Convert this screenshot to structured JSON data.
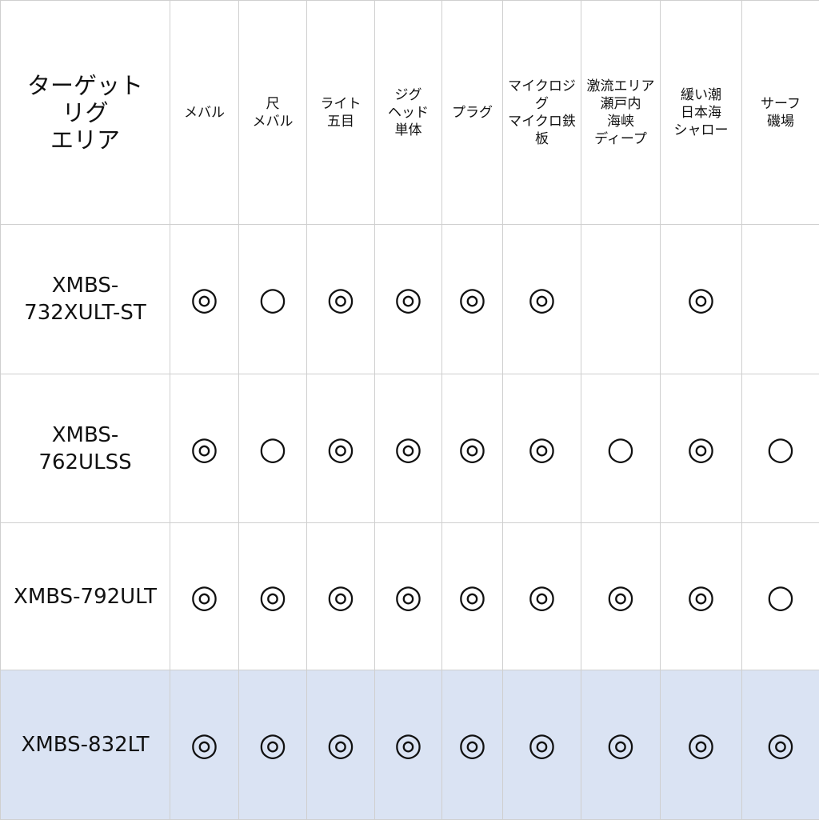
{
  "table": {
    "corner_header": "ターゲット\nリグ\nエリア",
    "columns": [
      "メバル",
      "尺\nメバル",
      "ライト\n五目",
      "ジグ\nヘッド\n単体",
      "プラグ",
      "マイクロジ\nグ\nマイクロ鉄\n板",
      "激流エリア\n瀬戸内\n海峡\nディープ",
      "緩い潮\n日本海\nシャロー",
      "サーフ\n磯場"
    ],
    "rows": [
      {
        "model": "XMBS-\n732XULT-ST",
        "marks": [
          "◎",
          "○",
          "◎",
          "◎",
          "◎",
          "◎",
          "",
          "◎",
          ""
        ]
      },
      {
        "model": "XMBS-\n762ULSS",
        "marks": [
          "◎",
          "○",
          "◎",
          "◎",
          "◎",
          "◎",
          "○",
          "◎",
          "○"
        ]
      },
      {
        "model": "XMBS-792ULT",
        "marks": [
          "◎",
          "◎",
          "◎",
          "◎",
          "◎",
          "◎",
          "◎",
          "◎",
          "○"
        ]
      },
      {
        "model": "XMBS-832LT",
        "marks": [
          "◎",
          "◎",
          "◎",
          "◎",
          "◎",
          "◎",
          "◎",
          "◎",
          "◎"
        ],
        "highlighted": true
      }
    ],
    "highlight_color": "#dae3f3"
  }
}
